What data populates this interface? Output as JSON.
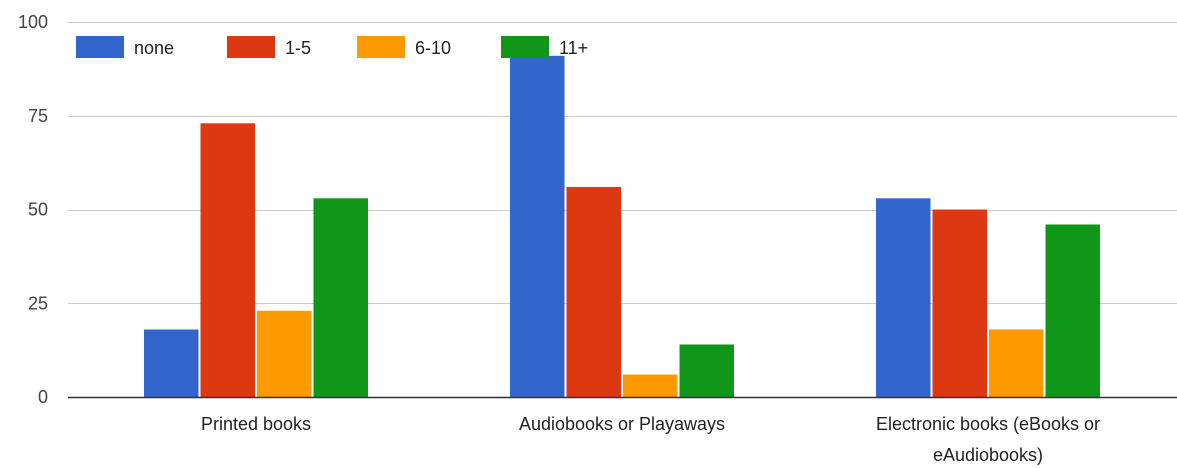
{
  "chart_data": {
    "type": "bar",
    "categories": [
      [
        "Printed books"
      ],
      [
        "Audiobooks or Playaways"
      ],
      [
        "Electronic books (eBooks or",
        "eAudiobooks)"
      ]
    ],
    "series": [
      {
        "name": "none",
        "color": "#3366cc",
        "values": [
          18,
          91,
          53
        ]
      },
      {
        "name": "1-5",
        "color": "#dc3912",
        "values": [
          73,
          56,
          50
        ]
      },
      {
        "name": "6-10",
        "color": "#ff9900",
        "values": [
          23,
          6,
          18
        ]
      },
      {
        "name": "11+",
        "color": "#109618",
        "values": [
          53,
          14,
          46
        ]
      }
    ],
    "yticks": [
      0,
      25,
      50,
      75,
      100
    ],
    "ylim": [
      0,
      100
    ],
    "grid": true,
    "legend_position": "top-left",
    "title": "",
    "xlabel": "",
    "ylabel": ""
  }
}
